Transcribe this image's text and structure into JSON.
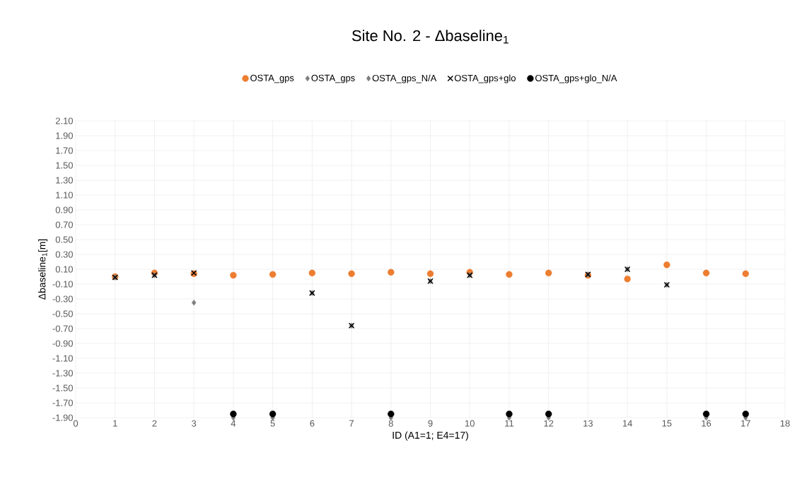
{
  "chart_data": {
    "type": "scatter",
    "title": "Site No. 2 - Δbaseline$_{1}$",
    "xlabel": "ID (A1=1; E4=17)",
    "ylabel": "Δbaseline$_{1}$[m]",
    "xlim": [
      0,
      18
    ],
    "xticks": [
      0,
      1,
      2,
      3,
      4,
      5,
      6,
      7,
      8,
      9,
      10,
      11,
      12,
      13,
      14,
      15,
      16,
      17,
      18
    ],
    "ylim": [
      -1.9,
      2.1
    ],
    "yticks": [
      {
        "value": 2.1,
        "label": "2.10"
      },
      {
        "value": 1.9,
        "label": "1.90"
      },
      {
        "value": 1.7,
        "label": "1.70"
      },
      {
        "value": 1.5,
        "label": "1.50"
      },
      {
        "value": 1.3,
        "label": "1.30"
      },
      {
        "value": 1.1,
        "label": "1.10"
      },
      {
        "value": 0.9,
        "label": "0.90"
      },
      {
        "value": 0.7,
        "label": "0.70"
      },
      {
        "value": 0.5,
        "label": "0.50"
      },
      {
        "value": 0.3,
        "label": "0.30"
      },
      {
        "value": 0.1,
        "label": "0.10"
      },
      {
        "value": -0.1,
        "label": "-0.10"
      },
      {
        "value": -0.3,
        "label": "-0.30"
      },
      {
        "value": -0.5,
        "label": "-0.50"
      },
      {
        "value": -0.7,
        "label": "-0.70"
      },
      {
        "value": -0.9,
        "label": "-0.90"
      },
      {
        "value": -1.1,
        "label": "-1.10"
      },
      {
        "value": -1.3,
        "label": "-1.30"
      },
      {
        "value": -1.5,
        "label": "-1.50"
      },
      {
        "value": -1.7,
        "label": "-1.70"
      },
      {
        "value": -1.9,
        "label": "-1.90"
      }
    ],
    "grid": true,
    "legend": "top",
    "series": [
      {
        "name": "OSTA_gps",
        "color": "#ed7d31",
        "marker": "circle",
        "x": [
          1,
          2,
          3,
          4,
          5,
          6,
          7,
          8,
          9,
          10,
          11,
          12,
          13,
          14,
          15,
          16,
          17
        ],
        "values": [
          0.0,
          0.05,
          0.04,
          0.02,
          0.03,
          0.05,
          0.04,
          0.06,
          0.04,
          0.06,
          0.03,
          0.05,
          0.02,
          -0.03,
          0.16,
          0.05,
          0.04
        ]
      },
      {
        "name": "OSTA_gps",
        "color": "#7f7f7f",
        "marker": "diamond",
        "x": [
          1,
          2,
          3,
          6,
          7,
          9,
          10,
          13,
          14,
          15
        ],
        "values": [
          -0.01,
          0.02,
          -0.35,
          -0.22,
          -0.66,
          -0.06,
          0.02,
          0.03,
          0.1,
          -0.11
        ]
      },
      {
        "name": "OSTA_gps_N/A",
        "color": "#7f7f7f",
        "marker": "diamond",
        "x": [
          4,
          5,
          8,
          11,
          12,
          16,
          17
        ],
        "values": [
          -1.9,
          -1.9,
          -1.9,
          -1.9,
          -1.9,
          -1.9,
          -1.9
        ]
      },
      {
        "name": "OSTA_gps+glo",
        "color": "#000000",
        "marker": "cross",
        "x": [
          1,
          2,
          3,
          6,
          7,
          9,
          10,
          13,
          14,
          15
        ],
        "values": [
          -0.01,
          0.02,
          0.05,
          -0.22,
          -0.66,
          -0.06,
          0.02,
          0.03,
          0.1,
          -0.11
        ]
      },
      {
        "name": "OSTA_gps+glo_N/A",
        "color": "#000000",
        "marker": "circle",
        "x": [
          4,
          5,
          8,
          11,
          12,
          16,
          17
        ],
        "values": [
          -1.85,
          -1.85,
          -1.85,
          -1.85,
          -1.85,
          -1.85,
          -1.85
        ]
      }
    ]
  }
}
